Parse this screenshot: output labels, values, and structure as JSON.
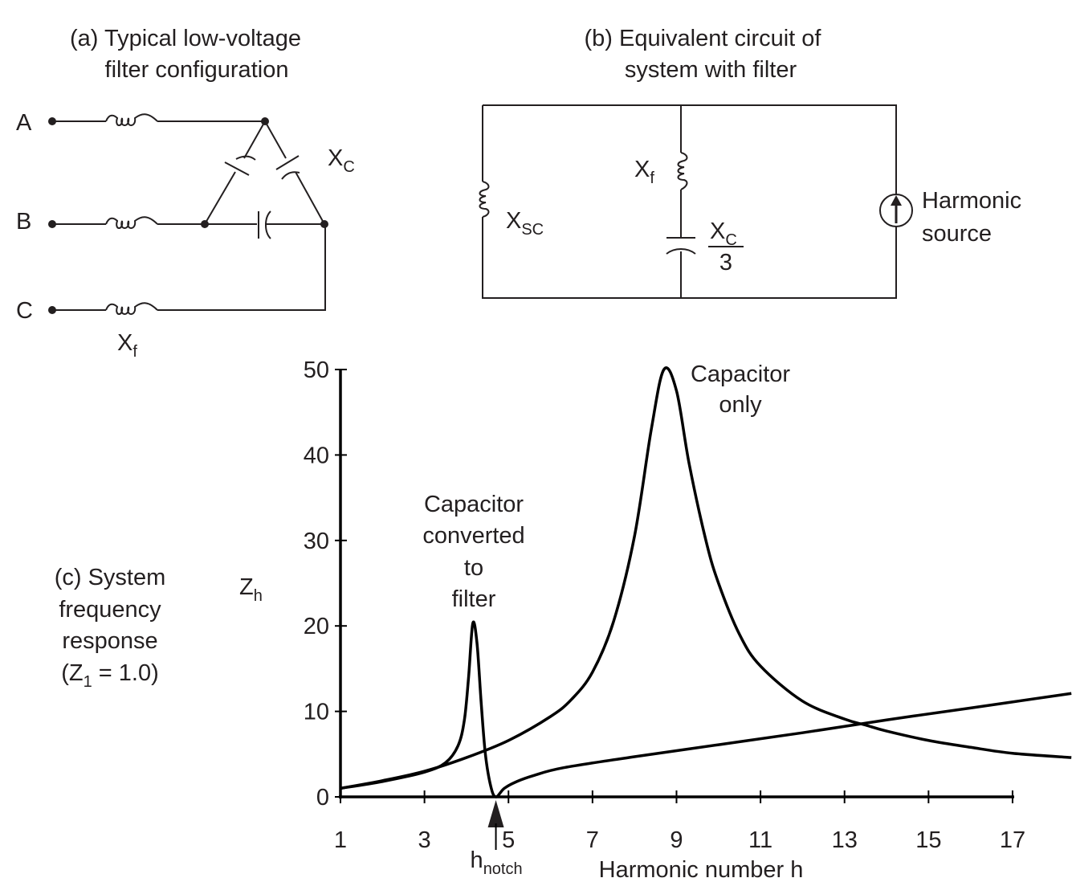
{
  "panel_a": {
    "title_line1": "(a) Typical low-voltage",
    "title_line2": "filter configuration",
    "phase_labels": [
      "A",
      "B",
      "C"
    ],
    "xc_label": "X",
    "xc_sub": "C",
    "xf_label": "X",
    "xf_sub": "f"
  },
  "panel_b": {
    "title_line1": "(b) Equivalent circuit of",
    "title_line2": "system with filter",
    "xsc_label": "X",
    "xsc_sub": "SC",
    "xf_label": "X",
    "xf_sub": "f",
    "xc_label": "X",
    "xc_sub": "C",
    "xc_den": "3",
    "source_line1": "Harmonic",
    "source_line2": "source"
  },
  "panel_c": {
    "label_lines": [
      "(c) System",
      "frequency",
      "response"
    ],
    "z1_prefix": "(Z",
    "z1_sub": "1",
    "z1_suffix": " = 1.0)"
  },
  "chart_data": {
    "type": "line",
    "xlabel": "Harmonic number h",
    "ylabel": "Z",
    "ylabel_sub": "h",
    "xlim": [
      1,
      18.4
    ],
    "ylim": [
      0,
      50
    ],
    "xticks": [
      1,
      3,
      5,
      7,
      9,
      11,
      13,
      15,
      17
    ],
    "yticks": [
      0,
      10,
      20,
      30,
      40,
      50
    ],
    "grid": false,
    "annotation": {
      "text": "h",
      "sub": "notch",
      "x": 4.7
    },
    "series": [
      {
        "name": "Capacitor only",
        "label_lines": [
          "Capacitor",
          "only"
        ],
        "points": [
          [
            1,
            1
          ],
          [
            2,
            1.9
          ],
          [
            3,
            3
          ],
          [
            4,
            4.6
          ],
          [
            5,
            6.6
          ],
          [
            6,
            9.4
          ],
          [
            6.5,
            11.4
          ],
          [
            7,
            14.6
          ],
          [
            7.5,
            20.5
          ],
          [
            8,
            30.5
          ],
          [
            8.4,
            43
          ],
          [
            8.7,
            50
          ],
          [
            9,
            47.5
          ],
          [
            9.3,
            39
          ],
          [
            9.7,
            30
          ],
          [
            10,
            25
          ],
          [
            10.5,
            19
          ],
          [
            11,
            15.3
          ],
          [
            12,
            11.2
          ],
          [
            13,
            9.1
          ],
          [
            13.5,
            8.4
          ],
          [
            14,
            7.7
          ],
          [
            15,
            6.6
          ],
          [
            16,
            5.8
          ],
          [
            17,
            5.1
          ],
          [
            18.4,
            4.6
          ]
        ]
      },
      {
        "name": "Capacitor converted to filter",
        "label_lines": [
          "Capacitor",
          "converted",
          "to",
          "filter"
        ],
        "points": [
          [
            1,
            1
          ],
          [
            2,
            1.8
          ],
          [
            3,
            2.9
          ],
          [
            3.5,
            4
          ],
          [
            3.8,
            6
          ],
          [
            3.95,
            9
          ],
          [
            4.05,
            14
          ],
          [
            4.15,
            20.3
          ],
          [
            4.25,
            18
          ],
          [
            4.35,
            11
          ],
          [
            4.45,
            5
          ],
          [
            4.58,
            1.2
          ],
          [
            4.7,
            0
          ],
          [
            4.9,
            1
          ],
          [
            5.2,
            1.8
          ],
          [
            5.6,
            2.5
          ],
          [
            6.3,
            3.4
          ],
          [
            8,
            4.7
          ],
          [
            10,
            6.1
          ],
          [
            12,
            7.5
          ],
          [
            14,
            9
          ],
          [
            16,
            10.4
          ],
          [
            18.4,
            12.1
          ]
        ]
      }
    ]
  },
  "colors": {
    "ink": "#231f20",
    "background": "#ffffff"
  }
}
